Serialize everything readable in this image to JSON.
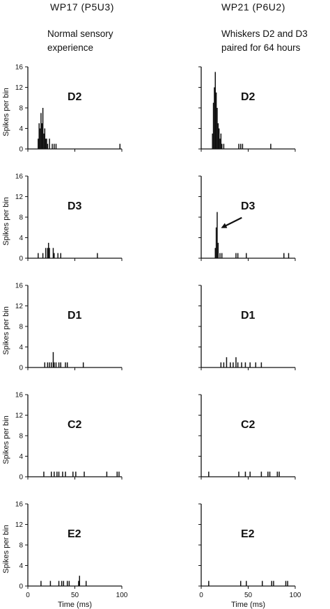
{
  "columns": [
    {
      "title": "WP17 (P5U3)",
      "subtitle": "Normal sensory\nexperience"
    },
    {
      "title": "WP21 (P6U2)",
      "subtitle": "Whiskers D2 and D3\npaired for 64 hours"
    }
  ],
  "chart_data": {
    "type": "bar",
    "layout": "grid of 5 rows x 2 columns of PSTH histograms",
    "ylabel": "Spikes per bin",
    "xlabel": "Time (ms)",
    "ylim": [
      0,
      16
    ],
    "yticks": [
      0,
      4,
      8,
      12,
      16
    ],
    "xlim": [
      0,
      100
    ],
    "xticks": [
      0,
      50,
      100
    ],
    "panels": [
      {
        "column": 0,
        "row": 0,
        "label": "D2",
        "bins": [
          {
            "x": 11,
            "y": 2
          },
          {
            "x": 12,
            "y": 5
          },
          {
            "x": 13,
            "y": 4
          },
          {
            "x": 14,
            "y": 7
          },
          {
            "x": 15,
            "y": 5
          },
          {
            "x": 16,
            "y": 8
          },
          {
            "x": 17,
            "y": 3
          },
          {
            "x": 18,
            "y": 4
          },
          {
            "x": 19,
            "y": 2
          },
          {
            "x": 20,
            "y": 2
          },
          {
            "x": 21,
            "y": 1
          },
          {
            "x": 23,
            "y": 2
          },
          {
            "x": 26,
            "y": 1
          },
          {
            "x": 28,
            "y": 1
          },
          {
            "x": 30,
            "y": 1
          },
          {
            "x": 98,
            "y": 1
          }
        ]
      },
      {
        "column": 1,
        "row": 0,
        "label": "D2",
        "bins": [
          {
            "x": 12,
            "y": 3
          },
          {
            "x": 13,
            "y": 9
          },
          {
            "x": 14,
            "y": 12
          },
          {
            "x": 15,
            "y": 15
          },
          {
            "x": 16,
            "y": 11
          },
          {
            "x": 17,
            "y": 8
          },
          {
            "x": 18,
            "y": 5
          },
          {
            "x": 19,
            "y": 4
          },
          {
            "x": 20,
            "y": 2
          },
          {
            "x": 21,
            "y": 3
          },
          {
            "x": 22,
            "y": 1
          },
          {
            "x": 24,
            "y": 1
          },
          {
            "x": 40,
            "y": 1
          },
          {
            "x": 42,
            "y": 1
          },
          {
            "x": 44,
            "y": 1
          },
          {
            "x": 74,
            "y": 1
          }
        ]
      },
      {
        "column": 0,
        "row": 1,
        "label": "D3",
        "bins": [
          {
            "x": 11,
            "y": 1
          },
          {
            "x": 16,
            "y": 1
          },
          {
            "x": 19,
            "y": 2
          },
          {
            "x": 21,
            "y": 2
          },
          {
            "x": 22,
            "y": 3
          },
          {
            "x": 23,
            "y": 2
          },
          {
            "x": 27,
            "y": 2
          },
          {
            "x": 28,
            "y": 1
          },
          {
            "x": 32,
            "y": 1
          },
          {
            "x": 35,
            "y": 1
          },
          {
            "x": 74,
            "y": 1
          }
        ]
      },
      {
        "column": 1,
        "row": 1,
        "label": "D3",
        "bins": [
          {
            "x": 15,
            "y": 2
          },
          {
            "x": 16,
            "y": 6
          },
          {
            "x": 17,
            "y": 9
          },
          {
            "x": 18,
            "y": 3
          },
          {
            "x": 20,
            "y": 1
          },
          {
            "x": 22,
            "y": 1
          },
          {
            "x": 37,
            "y": 1
          },
          {
            "x": 39,
            "y": 1
          },
          {
            "x": 48,
            "y": 1
          },
          {
            "x": 88,
            "y": 1
          },
          {
            "x": 93,
            "y": 1
          }
        ]
      },
      {
        "column": 0,
        "row": 2,
        "label": "D1",
        "bins": [
          {
            "x": 18,
            "y": 1
          },
          {
            "x": 21,
            "y": 1
          },
          {
            "x": 23,
            "y": 1
          },
          {
            "x": 25,
            "y": 1
          },
          {
            "x": 27,
            "y": 3
          },
          {
            "x": 28,
            "y": 1
          },
          {
            "x": 30,
            "y": 1
          },
          {
            "x": 33,
            "y": 1
          },
          {
            "x": 35,
            "y": 1
          },
          {
            "x": 40,
            "y": 1
          },
          {
            "x": 42,
            "y": 1
          },
          {
            "x": 59,
            "y": 1
          }
        ]
      },
      {
        "column": 1,
        "row": 2,
        "label": "D1",
        "bins": [
          {
            "x": 21,
            "y": 1
          },
          {
            "x": 24,
            "y": 1
          },
          {
            "x": 27,
            "y": 2
          },
          {
            "x": 31,
            "y": 1
          },
          {
            "x": 34,
            "y": 1
          },
          {
            "x": 37,
            "y": 2
          },
          {
            "x": 39,
            "y": 1
          },
          {
            "x": 43,
            "y": 1
          },
          {
            "x": 47,
            "y": 1
          },
          {
            "x": 52,
            "y": 1
          },
          {
            "x": 58,
            "y": 1
          },
          {
            "x": 64,
            "y": 1
          }
        ]
      },
      {
        "column": 0,
        "row": 3,
        "label": "C2",
        "bins": [
          {
            "x": 17,
            "y": 1
          },
          {
            "x": 25,
            "y": 1
          },
          {
            "x": 28,
            "y": 1
          },
          {
            "x": 31,
            "y": 1
          },
          {
            "x": 33,
            "y": 1
          },
          {
            "x": 37,
            "y": 1
          },
          {
            "x": 40,
            "y": 1
          },
          {
            "x": 48,
            "y": 1
          },
          {
            "x": 51,
            "y": 1
          },
          {
            "x": 60,
            "y": 1
          },
          {
            "x": 84,
            "y": 1
          },
          {
            "x": 95,
            "y": 1
          },
          {
            "x": 97,
            "y": 1
          }
        ]
      },
      {
        "column": 1,
        "row": 3,
        "label": "C2",
        "bins": [
          {
            "x": 8,
            "y": 1
          },
          {
            "x": 40,
            "y": 1
          },
          {
            "x": 47,
            "y": 1
          },
          {
            "x": 52,
            "y": 1
          },
          {
            "x": 64,
            "y": 1
          },
          {
            "x": 71,
            "y": 1
          },
          {
            "x": 73,
            "y": 1
          },
          {
            "x": 81,
            "y": 1
          },
          {
            "x": 83,
            "y": 1
          }
        ]
      },
      {
        "column": 0,
        "row": 4,
        "label": "E2",
        "bins": [
          {
            "x": 14,
            "y": 1
          },
          {
            "x": 24,
            "y": 1
          },
          {
            "x": 33,
            "y": 1
          },
          {
            "x": 36,
            "y": 1
          },
          {
            "x": 38,
            "y": 1
          },
          {
            "x": 42,
            "y": 1
          },
          {
            "x": 44,
            "y": 1
          },
          {
            "x": 54,
            "y": 1
          },
          {
            "x": 55,
            "y": 2
          },
          {
            "x": 62,
            "y": 1
          }
        ]
      },
      {
        "column": 1,
        "row": 4,
        "label": "E2",
        "bins": [
          {
            "x": 8,
            "y": 1
          },
          {
            "x": 42,
            "y": 1
          },
          {
            "x": 48,
            "y": 1
          },
          {
            "x": 65,
            "y": 1
          },
          {
            "x": 75,
            "y": 1
          },
          {
            "x": 77,
            "y": 1
          },
          {
            "x": 90,
            "y": 1
          },
          {
            "x": 92,
            "y": 1
          }
        ]
      }
    ],
    "annotations": [
      {
        "type": "arrow",
        "column": 1,
        "row": 1,
        "points_to_x": 18,
        "points_to_y": 6
      }
    ]
  }
}
